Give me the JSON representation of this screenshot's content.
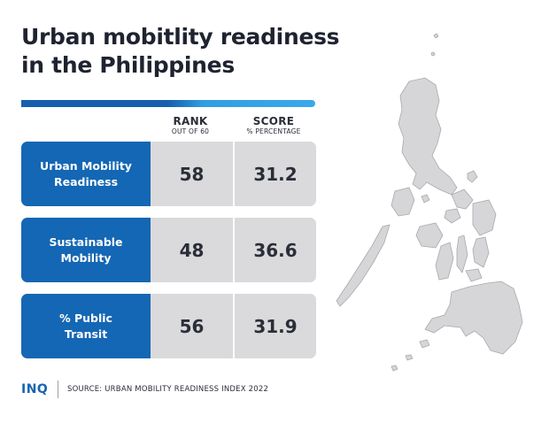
{
  "title": {
    "line1": "Urban mobitlity readiness",
    "line2": "in the Philippines"
  },
  "columns": {
    "rank": {
      "label": "RANK",
      "sub": "OUT OF 60"
    },
    "score": {
      "label": "SCORE",
      "sub": "% PERCENTAGE"
    }
  },
  "rows": [
    {
      "label_line1": "Urban Mobility",
      "label_line2": "Readiness",
      "rank": "58",
      "score": "31.2"
    },
    {
      "label_line1": "Sustainable",
      "label_line2": "Mobility",
      "rank": "48",
      "score": "36.6"
    },
    {
      "label_line1": "% Public",
      "label_line2": "Transit",
      "rank": "56",
      "score": "31.9"
    }
  ],
  "footer": {
    "logo": "INQ",
    "source": "SOURCE: URBAN MOBILITY READINESS INDEX 2022"
  },
  "colors": {
    "accent": "#1467b4",
    "accent_light": "#3aa9ea",
    "cell_bg": "#dadadc",
    "map_fill": "#d6d6d8"
  },
  "map": {
    "icon": "philippines-map-icon"
  }
}
